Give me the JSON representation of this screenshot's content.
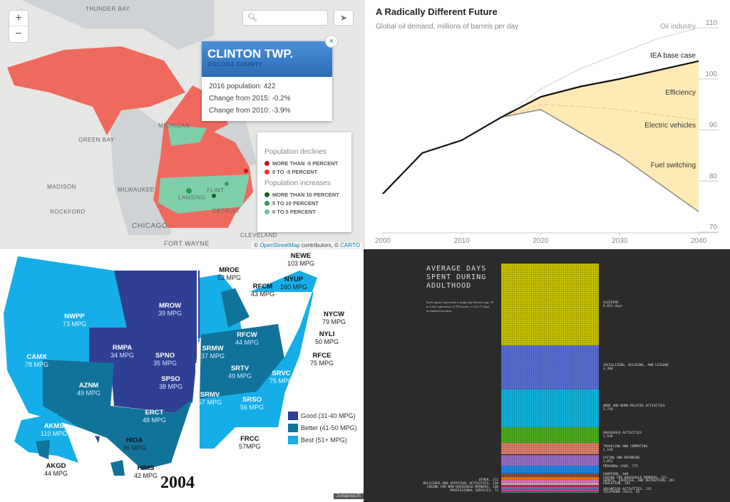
{
  "map_michigan": {
    "zoom_in": "+",
    "zoom_out": "−",
    "cities": [
      "THUNDER BAY",
      "MICHIGAN",
      "GREEN BAY",
      "MADISON",
      "MILWAUKEE",
      "ROCKFORD",
      "CHICAGO",
      "FLINT",
      "LANSING",
      "DETROIT",
      "CLEVELAND",
      "FORT WAYNE"
    ],
    "popup": {
      "title": "CLINTON TWP.",
      "subtitle": "OSCODA COUNTY",
      "lines": [
        "2016 population: 422",
        "Change from 2015: -0.2%",
        "Change from 2010: -3.9%"
      ],
      "close": "×"
    },
    "legend": {
      "declines_title": "Population declines",
      "increases_title": "Population increases",
      "items": [
        {
          "label": "MORE THAN -5 PERCENT",
          "color": "#b71c1c"
        },
        {
          "label": "0 TO -5 PERCENT",
          "color": "#e53935"
        },
        {
          "label": "MORE THAN 10 PERCENT",
          "color": "#1b5e20"
        },
        {
          "label": "5 TO 10 PERCENT",
          "color": "#2e9e4f"
        },
        {
          "label": "0 TO 5 PERCENT",
          "color": "#6cc49a"
        }
      ]
    },
    "attribution": {
      "prefix": "© ",
      "osm": "OpenStreetMap",
      "mid": " contributors, © ",
      "carto": "CARTO"
    }
  },
  "chart_data": [
    {
      "type": "area",
      "title": "A Radically Different Future",
      "subtitle": "Global oil demand, millions of barrels per day",
      "x_ticks": [
        2000,
        2010,
        2020,
        2030,
        2040
      ],
      "y_ticks": [
        70,
        80,
        90,
        100,
        110
      ],
      "ylim": [
        70,
        111
      ],
      "xlim": [
        2000,
        2040
      ],
      "series": [
        {
          "name": "IEA base case",
          "x": [
            2000,
            2005,
            2010,
            2015,
            2020,
            2025,
            2030,
            2040
          ],
          "y": [
            77.5,
            85.5,
            88,
            92.5,
            96.5,
            98.5,
            100,
            103.5
          ],
          "color": "#111111"
        },
        {
          "name": "Oil industry",
          "x": [
            2015,
            2020,
            2025,
            2030,
            2035,
            2040
          ],
          "y": [
            92.5,
            98,
            102,
            105,
            108,
            110
          ],
          "color": "#d8d8d8"
        },
        {
          "name": "Efficiency",
          "x": [
            2015,
            2020,
            2025,
            2030,
            2040
          ],
          "y": [
            92.5,
            95,
            94.6,
            94,
            92
          ],
          "color": "#fdeab4"
        },
        {
          "name": "Electric vehicles",
          "x": [
            2015,
            2020,
            2025,
            2030,
            2040
          ],
          "y": [
            92.5,
            94.6,
            93,
            91.5,
            87.5
          ],
          "color": "#fdeab4"
        },
        {
          "name": "Fuel switching",
          "x": [
            2015,
            2020,
            2025,
            2030,
            2040
          ],
          "y": [
            92.5,
            94,
            89.5,
            85,
            74
          ],
          "color": "#fcc82c"
        }
      ]
    },
    {
      "type": "bar",
      "title": "AVERAGE DAYS SPENT DURING ADULTHOOD",
      "subtitle": "Each square represents a single day between age 18 to a life expectancy of 78.8 years, or 22,171 days including leap days.",
      "categories": [
        {
          "label": "SLEEPING",
          "value": 8031,
          "display": "8,031 days",
          "color": "#c8c400"
        },
        {
          "label": "SOCIALIZING, RELAXING, AND LEISURE",
          "value": 4300,
          "display": "4,300",
          "color": "#5b6fd6"
        },
        {
          "label": "WORK AND WORK-RELATED ACTIVITIES",
          "value": 3710,
          "display": "3,710",
          "color": "#0fb6e0"
        },
        {
          "label": "HOUSEHOLD ACTIVITIES",
          "value": 1549,
          "display": "1,549",
          "color": "#4caf1c"
        },
        {
          "label": "TRAVELING AND COMMUTING",
          "value": 1148,
          "display": "1,148",
          "color": "#e0806a"
        },
        {
          "label": "EATING AND DRINKING",
          "value": 1052,
          "display": "1,052",
          "color": "#9b6fc9"
        },
        {
          "label": "PERSONAL CARE",
          "value": 775,
          "display": "PERSONAL CARE, 775",
          "color": "#1e88e5"
        },
        {
          "label": "SHOPPING",
          "value": 348,
          "display": "SHOPPING, 348",
          "color": "#8d4e3a"
        },
        {
          "label": "CARING FOR HOUSEHOLD MEMBERS",
          "value": 321,
          "display": "CARING FOR HOUSEHOLD MEMBERS, 321",
          "color": "#f57c00"
        },
        {
          "label": "SPORTS, EXERCISE, AND RECREATION",
          "value": 281,
          "display": "SPORTS, EXERCISE, AND RECREATION, 281",
          "color": "#e573c0"
        },
        {
          "label": "EDUCATION",
          "value": 183,
          "display": "EDUCATION, 183",
          "color": "#bdbdbd"
        },
        {
          "label": "OTHER",
          "value": 212,
          "display": "OTHER, 212",
          "color": "#d81b60"
        },
        {
          "label": "RELIGIOUS AND SPIRITUAL ACTIVITIES",
          "value": 138,
          "display": "RELIGIOUS AND SPIRITUAL ACTIVITIES, 138",
          "color": "#26a69a"
        },
        {
          "label": "VOLUNTEER ACTIVITIES",
          "value": 135,
          "display": "VOLUNTEER ACTIVITIES, 135",
          "color": "#ab47bc"
        },
        {
          "label": "CARING FOR NON-HOUSEHOLD MEMBERS",
          "value": 130,
          "display": "CARING FOR NON-HOUSEHOLD MEMBERS, 130",
          "color": "#ec407a"
        },
        {
          "label": "TELEPHONE CALLS",
          "value": 85,
          "display": "TELEPHONE CALLS, 85",
          "color": "#00897b"
        },
        {
          "label": "PROFESSIONAL SERVICES",
          "value": 73,
          "display": "PROFESSIONAL SERVICES, 73",
          "color": "#78909c"
        }
      ]
    }
  ],
  "map_mpg": {
    "year": "2004",
    "badge": "JuxtaposeJS",
    "legend": [
      {
        "label": "Good (31-40 MPG)",
        "color": "#2e3f94"
      },
      {
        "label": "Better (41-50 MPG)",
        "color": "#12739a"
      },
      {
        "label": "Best (51+ MPG)",
        "color": "#16aee8"
      }
    ],
    "regions": [
      {
        "code": "NWPP",
        "mpg": "73 MPG",
        "tier": 2
      },
      {
        "code": "CAMX",
        "mpg": "78 MPG",
        "tier": 2
      },
      {
        "code": "MROW",
        "mpg": "39 MPG",
        "tier": 0
      },
      {
        "code": "MROE",
        "mpg": "52 MPG",
        "tier": 2
      },
      {
        "code": "RFCM",
        "mpg": "43 MPG",
        "tier": 1
      },
      {
        "code": "NYUP",
        "mpg": "160 MPG",
        "tier": 2
      },
      {
        "code": "NEWE",
        "mpg": "103 MPG",
        "tier": 2
      },
      {
        "code": "NYCW",
        "mpg": "79 MPG",
        "tier": 2
      },
      {
        "code": "NYLI",
        "mpg": "50 MPG",
        "tier": 1
      },
      {
        "code": "RFCE",
        "mpg": "75 MPG",
        "tier": 2
      },
      {
        "code": "RFCW",
        "mpg": "44 MPG",
        "tier": 1
      },
      {
        "code": "RMPA",
        "mpg": "34 MPG",
        "tier": 0
      },
      {
        "code": "SPNO",
        "mpg": "35 MPG",
        "tier": 0
      },
      {
        "code": "SRMW",
        "mpg": "37 MPG",
        "tier": 0
      },
      {
        "code": "SRTV",
        "mpg": "49 MPG",
        "tier": 1
      },
      {
        "code": "SRVC",
        "mpg": "75 MPG",
        "tier": 2
      },
      {
        "code": "AZNM",
        "mpg": "49 MPG",
        "tier": 1
      },
      {
        "code": "SPSO",
        "mpg": "38 MPG",
        "tier": 0
      },
      {
        "code": "SRMV",
        "mpg": "57 MPG",
        "tier": 2
      },
      {
        "code": "SRSO",
        "mpg": "56 MPG",
        "tier": 2
      },
      {
        "code": "ERCT",
        "mpg": "48 MPG",
        "tier": 1
      },
      {
        "code": "FRCC",
        "mpg": "57MPG",
        "tier": 2
      },
      {
        "code": "AKMS",
        "mpg": "110 MPG",
        "tier": 2
      },
      {
        "code": "AKGD",
        "mpg": "44 MPG",
        "tier": 1
      },
      {
        "code": "HIOA",
        "mpg": "36 MPG",
        "tier": 0
      },
      {
        "code": "HIMS",
        "mpg": "42 MPG",
        "tier": 1
      }
    ]
  }
}
